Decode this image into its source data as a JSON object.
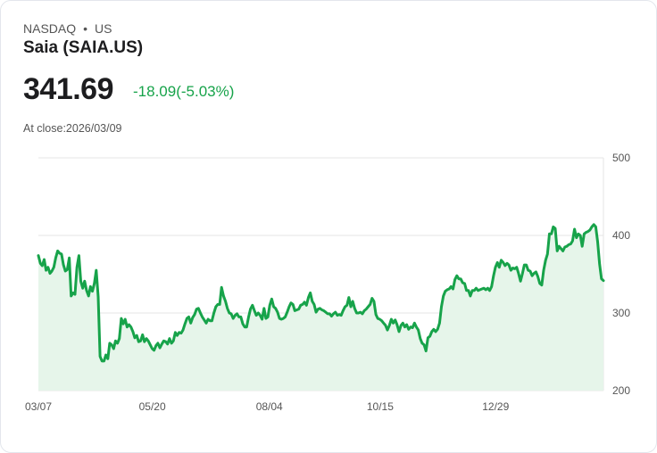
{
  "header": {
    "exchange": "NASDAQ",
    "separator": "•",
    "region": "US",
    "name": "Saia (SAIA.US)",
    "price": "341.69",
    "change": "-18.09(-5.03%)",
    "close_label": "At close:2026/03/09"
  },
  "colors": {
    "line": "#17a34a",
    "fill": "#e6f5ea",
    "grid": "#e5e5e5",
    "text": "#555555"
  },
  "chart_data": {
    "type": "area",
    "title": "",
    "xlabel": "",
    "ylabel": "",
    "ylim": [
      200,
      500
    ],
    "xdomain_days": [
      0,
      367
    ],
    "y_ticks": [
      {
        "value": 500,
        "label": "500"
      },
      {
        "value": 400,
        "label": "400"
      },
      {
        "value": 300,
        "label": "300"
      },
      {
        "value": 200,
        "label": "200"
      }
    ],
    "x_ticks": [
      {
        "day": 0,
        "label": "03/07"
      },
      {
        "day": 74,
        "label": "05/20"
      },
      {
        "day": 150,
        "label": "08/04"
      },
      {
        "day": 222,
        "label": "10/15"
      },
      {
        "day": 297,
        "label": "12/29"
      }
    ],
    "grid": true,
    "values": [
      374,
      364,
      361,
      369,
      355,
      359,
      351,
      354,
      359,
      371,
      380,
      377,
      376,
      362,
      354,
      356,
      371,
      322,
      326,
      324,
      359,
      374,
      341,
      332,
      341,
      329,
      322,
      334,
      328,
      338,
      355,
      321,
      244,
      238,
      238,
      246,
      241,
      261,
      259,
      254,
      264,
      261,
      267,
      293,
      286,
      292,
      282,
      285,
      282,
      276,
      268,
      271,
      263,
      264,
      272,
      263,
      267,
      264,
      259,
      254,
      252,
      258,
      261,
      255,
      260,
      264,
      263,
      260,
      267,
      261,
      264,
      275,
      271,
      275,
      274,
      278,
      286,
      293,
      295,
      287,
      294,
      298,
      305,
      306,
      300,
      295,
      291,
      287,
      292,
      290,
      290,
      300,
      308,
      311,
      311,
      333,
      322,
      315,
      306,
      300,
      299,
      293,
      297,
      299,
      295,
      295,
      286,
      282,
      282,
      295,
      305,
      310,
      303,
      297,
      300,
      297,
      292,
      306,
      293,
      295,
      310,
      318,
      308,
      306,
      301,
      293,
      292,
      293,
      295,
      301,
      308,
      313,
      311,
      303,
      304,
      305,
      310,
      311,
      314,
      310,
      320,
      326,
      315,
      311,
      301,
      305,
      306,
      304,
      303,
      301,
      299,
      299,
      296,
      299,
      301,
      297,
      298,
      297,
      303,
      308,
      310,
      320,
      308,
      315,
      306,
      300,
      300,
      301,
      299,
      303,
      305,
      308,
      311,
      319,
      315,
      298,
      293,
      292,
      290,
      287,
      284,
      278,
      284,
      292,
      287,
      291,
      285,
      276,
      284,
      287,
      282,
      285,
      279,
      282,
      281,
      287,
      282,
      278,
      267,
      261,
      259,
      251,
      268,
      270,
      276,
      279,
      276,
      279,
      287,
      308,
      322,
      328,
      330,
      331,
      334,
      331,
      343,
      348,
      344,
      344,
      339,
      338,
      329,
      329,
      322,
      329,
      329,
      332,
      329,
      330,
      331,
      332,
      330,
      332,
      329,
      334,
      348,
      359,
      365,
      359,
      368,
      365,
      361,
      364,
      362,
      355,
      358,
      357,
      359,
      351,
      341,
      351,
      362,
      362,
      355,
      354,
      348,
      351,
      353,
      347,
      338,
      336,
      355,
      368,
      376,
      402,
      402,
      411,
      409,
      380,
      386,
      383,
      380,
      385,
      386,
      388,
      389,
      393,
      408,
      397,
      402,
      400,
      386,
      402,
      404,
      405,
      407,
      411,
      414,
      411,
      392,
      363,
      344,
      341.69
    ]
  }
}
